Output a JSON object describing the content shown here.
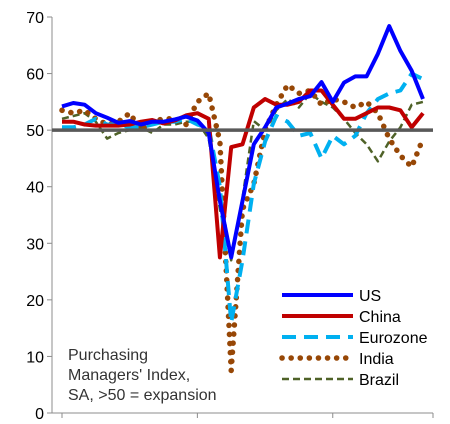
{
  "chart_data": {
    "type": "line",
    "ylim": [
      0,
      70
    ],
    "yticks": [
      "0",
      "10",
      "20",
      "30",
      "40",
      "50",
      "60",
      "70"
    ],
    "x_count": 33,
    "x_tick_indices": [
      0,
      12,
      24,
      33
    ],
    "reference_line": {
      "value": 50,
      "color": "#595959"
    },
    "note": [
      "Purchasing",
      "Managers' Index,",
      "SA, >50 = expansion"
    ],
    "series": [
      {
        "name": "US",
        "color": "#0000ff",
        "dash": "solid",
        "values": [
          54.2,
          54.8,
          54.5,
          53.0,
          52.2,
          51.3,
          51.6,
          51.0,
          51.5,
          51.5,
          51.9,
          52.4,
          51.7,
          49.5,
          37.5,
          27.5,
          37.5,
          47.5,
          50.5,
          54.0,
          54.7,
          55.5,
          56.0,
          58.5,
          55.0,
          58.4,
          59.5,
          59.5,
          63.5,
          68.4,
          64.0,
          60.5,
          55.5
        ]
      },
      {
        "name": "China",
        "color": "#c00000",
        "dash": "solid",
        "values": [
          51.5,
          51.5,
          51.0,
          50.8,
          50.8,
          50.8,
          51.0,
          51.5,
          51.8,
          51.2,
          51.7,
          52.6,
          53.0,
          52.0,
          27.5,
          47.0,
          47.5,
          54.0,
          55.5,
          54.5,
          54.5,
          55.0,
          57.0,
          57.0,
          54.5,
          52.0,
          52.0,
          53.0,
          54.0,
          54.0,
          53.5,
          50.5,
          53.0
        ]
      },
      {
        "name": "Eurozone",
        "color": "#00b0f0",
        "dash": "dash",
        "values": [
          50.5,
          50.5,
          51.0,
          52.0,
          51.0,
          51.0,
          50.5,
          50.5,
          51.0,
          51.5,
          51.5,
          52.0,
          51.0,
          50.5,
          40.0,
          16.0,
          27.0,
          40.5,
          48.0,
          52.5,
          51.5,
          49.0,
          49.5,
          45.0,
          49.0,
          47.5,
          49.0,
          53.0,
          55.5,
          56.5,
          57.0,
          60.0,
          59.0
        ]
      },
      {
        "name": "India",
        "color": "#974706",
        "dash": "dot",
        "values": [
          53.5,
          53.0,
          53.5,
          52.0,
          51.0,
          51.5,
          53.0,
          50.0,
          51.5,
          52.0,
          52.0,
          51.0,
          55.0,
          56.5,
          48.0,
          7.5,
          36.0,
          40.5,
          50.0,
          54.5,
          58.0,
          56.5,
          57.0,
          54.5,
          55.5,
          55.0,
          54.0,
          55.0,
          53.0,
          48.5,
          45.5,
          43.5,
          48.5
        ]
      },
      {
        "name": "Brazil",
        "color": "#4f6228",
        "dash": "dash",
        "values": [
          52.0,
          52.5,
          53.0,
          51.5,
          48.5,
          49.5,
          50.0,
          50.5,
          49.5,
          51.0,
          51.0,
          51.5,
          51.5,
          48.5,
          36.0,
          27.0,
          38.0,
          51.6,
          50.0,
          53.5,
          55.5,
          54.0,
          56.5,
          55.0,
          54.0,
          52.0,
          49.5,
          47.5,
          44.5,
          48.0,
          50.5,
          54.5,
          55.0
        ]
      }
    ],
    "legend_position": "lower-right"
  }
}
